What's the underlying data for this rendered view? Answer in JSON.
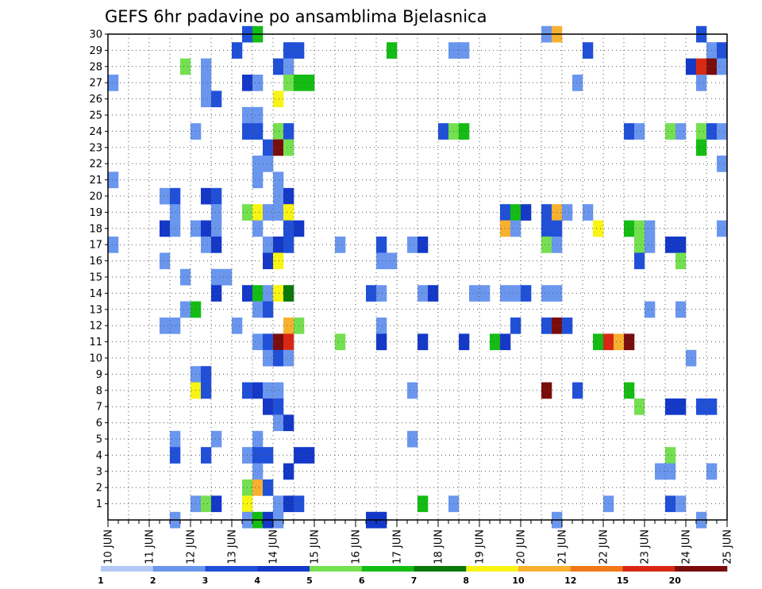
{
  "chart_data": {
    "type": "heatmap",
    "title": "GEFS 6hr padavine po ansamblima Bjelasnica",
    "xlabel": "",
    "ylabel": "",
    "x_ticks": [
      "10 JUN",
      "11 JUN",
      "12 JUN",
      "13 JUN",
      "14 JUN",
      "15 JUN",
      "16 JUN",
      "17 JUN",
      "18 JUN",
      "19 JUN",
      "20 JUN",
      "21 JUN",
      "22 JUN",
      "23 JUN",
      "24 JUN",
      "25 JUN"
    ],
    "x_range": [
      "10 JUN 00Z",
      "25 JUN 00Z"
    ],
    "x_step": "6hr",
    "y_ticks": [
      1,
      2,
      3,
      4,
      5,
      6,
      7,
      8,
      9,
      10,
      11,
      12,
      13,
      14,
      15,
      16,
      17,
      18,
      19,
      20,
      21,
      22,
      23,
      24,
      25,
      26,
      27,
      28,
      29,
      30
    ],
    "y_range": [
      0,
      30
    ],
    "grid": true,
    "colorbar": {
      "labels": [
        "1",
        "2",
        "3",
        "4",
        "5",
        "6",
        "7",
        "8",
        "10",
        "12",
        "15",
        "20"
      ],
      "colors": [
        "#b4c8f5",
        "#6a96ee",
        "#2050d8",
        "#1438c8",
        "#74e050",
        "#14bc14",
        "#0a780a",
        "#f8f414",
        "#f8b030",
        "#f07818",
        "#d82814",
        "#7a0c0c"
      ]
    },
    "cells": [
      {
        "member": 30,
        "step": [
          13,
          14,
          42,
          43,
          57
        ],
        "value": [
          3,
          6,
          2,
          10,
          3
        ]
      },
      {
        "member": 29,
        "step": [
          12,
          17,
          18,
          27,
          33,
          34,
          46
        ],
        "value": [
          3,
          3,
          3,
          6,
          2,
          2,
          3
        ]
      },
      {
        "member": 29,
        "step": [
          58,
          59
        ],
        "value": [
          2,
          3
        ]
      },
      {
        "member": 28,
        "step": [
          7,
          9,
          16,
          17,
          56,
          57,
          58,
          59
        ],
        "value": [
          5,
          2,
          3,
          2,
          4,
          15,
          20,
          2
        ]
      },
      {
        "member": 27,
        "step": [
          0,
          9,
          13,
          14,
          17,
          18,
          19,
          45,
          57
        ],
        "value": [
          2,
          2,
          4,
          2,
          5,
          6,
          6,
          2,
          2
        ]
      },
      {
        "member": 26,
        "step": [
          9,
          10,
          16
        ],
        "value": [
          2,
          3,
          8
        ]
      },
      {
        "member": 25,
        "step": [
          13,
          14
        ],
        "value": [
          2,
          2
        ]
      },
      {
        "member": 24,
        "step": [
          8,
          13,
          14,
          16,
          17,
          32,
          33,
          34,
          50,
          51,
          54,
          55,
          57,
          58,
          59
        ],
        "value": [
          2,
          3,
          3,
          5,
          3,
          3,
          5,
          6,
          3,
          2,
          5,
          2,
          5,
          3,
          2
        ]
      },
      {
        "member": 23,
        "step": [
          15,
          16,
          17,
          57
        ],
        "value": [
          3,
          20,
          5,
          6
        ]
      },
      {
        "member": 22,
        "step": [
          14,
          15,
          59
        ],
        "value": [
          2,
          2,
          2
        ]
      },
      {
        "member": 21,
        "step": [
          0,
          14,
          16
        ],
        "value": [
          2,
          2,
          2
        ]
      },
      {
        "member": 20,
        "step": [
          5,
          6,
          9,
          10,
          16,
          17
        ],
        "value": [
          2,
          3,
          4,
          3,
          2,
          4
        ]
      },
      {
        "member": 19,
        "step": [
          6,
          10,
          13,
          14,
          15,
          16,
          17,
          38,
          39,
          40,
          42,
          43,
          44,
          46
        ],
        "value": [
          2,
          2,
          5,
          8,
          2,
          2,
          8,
          3,
          6,
          4,
          3,
          10,
          2,
          2
        ]
      },
      {
        "member": 18,
        "step": [
          5,
          6,
          8,
          9,
          10,
          14,
          17,
          18,
          38,
          39,
          42,
          43,
          47,
          50,
          51,
          52,
          59
        ],
        "value": [
          4,
          2,
          2,
          4,
          2,
          2,
          3,
          4,
          10,
          2,
          3,
          3,
          8,
          6,
          5,
          2,
          2
        ]
      },
      {
        "member": 17,
        "step": [
          0,
          9,
          10,
          15,
          16,
          17,
          22,
          26,
          29,
          30,
          42,
          43,
          51,
          52,
          54,
          55
        ],
        "value": [
          2,
          2,
          4,
          2,
          4,
          3,
          2,
          3,
          2,
          4,
          5,
          2,
          5,
          2,
          4,
          4
        ]
      },
      {
        "member": 16,
        "step": [
          5,
          15,
          16,
          26,
          27,
          51,
          55
        ],
        "value": [
          2,
          4,
          8,
          2,
          2,
          3,
          5
        ]
      },
      {
        "member": 15,
        "step": [
          7,
          10,
          11
        ],
        "value": [
          2,
          2,
          2
        ]
      },
      {
        "member": 14,
        "step": [
          10,
          13,
          14,
          15,
          16,
          17,
          25,
          26,
          30,
          31,
          35,
          36,
          38,
          39,
          40,
          42,
          43
        ],
        "value": [
          4,
          4,
          6,
          2,
          8,
          7,
          3,
          2,
          2,
          4,
          2,
          2,
          2,
          2,
          3,
          2,
          2
        ]
      },
      {
        "member": 13,
        "step": [
          7,
          8,
          14,
          15,
          52,
          55
        ],
        "value": [
          2,
          6,
          2,
          3,
          2,
          2
        ]
      },
      {
        "member": 12,
        "step": [
          5,
          6,
          12,
          17,
          18,
          26,
          39,
          42,
          43,
          44
        ],
        "value": [
          2,
          2,
          2,
          10,
          5,
          2,
          3,
          3,
          20,
          3
        ]
      },
      {
        "member": 11,
        "step": [
          14,
          15,
          16,
          17,
          22,
          26,
          30,
          34,
          37,
          38,
          47,
          48,
          49,
          50
        ],
        "value": [
          2,
          3,
          20,
          15,
          5,
          4,
          4,
          4,
          6,
          4,
          6,
          15,
          10,
          20
        ]
      },
      {
        "member": 10,
        "step": [
          15,
          16,
          17,
          56
        ],
        "value": [
          2,
          3,
          2,
          2
        ]
      },
      {
        "member": 9,
        "step": [
          8,
          9
        ],
        "value": [
          2,
          3
        ]
      },
      {
        "member": 8,
        "step": [
          8,
          9,
          13,
          14,
          15,
          16,
          29,
          42,
          45,
          50
        ],
        "value": [
          8,
          3,
          3,
          4,
          2,
          2,
          2,
          20,
          3,
          6
        ]
      },
      {
        "member": 7,
        "step": [
          15,
          16,
          51,
          54,
          55,
          57,
          58
        ],
        "value": [
          4,
          3,
          5,
          4,
          4,
          3,
          3
        ]
      },
      {
        "member": 6,
        "step": [
          16,
          17
        ],
        "value": [
          2,
          4
        ]
      },
      {
        "member": 5,
        "step": [
          6,
          10,
          14,
          29
        ],
        "value": [
          2,
          2,
          2,
          2
        ]
      },
      {
        "member": 4,
        "step": [
          6,
          9,
          13,
          14,
          15,
          18,
          19,
          54
        ],
        "value": [
          3,
          3,
          2,
          3,
          3,
          4,
          4,
          5
        ]
      },
      {
        "member": 3,
        "step": [
          14,
          17,
          53,
          54,
          58
        ],
        "value": [
          2,
          4,
          2,
          2,
          2
        ]
      },
      {
        "member": 2,
        "step": [
          13,
          14,
          15
        ],
        "value": [
          5,
          10,
          3
        ]
      },
      {
        "member": 1,
        "step": [
          8,
          9,
          10,
          13,
          16,
          17,
          18,
          30,
          33,
          48,
          54,
          55
        ],
        "value": [
          2,
          5,
          4,
          8,
          2,
          4,
          3,
          6,
          2,
          2,
          3,
          2
        ]
      },
      {
        "member": 0,
        "step": [
          6,
          13,
          14,
          15,
          16,
          25,
          26,
          43,
          57
        ],
        "value": [
          2,
          2,
          6,
          4,
          2,
          4,
          4,
          2,
          2
        ]
      }
    ]
  }
}
